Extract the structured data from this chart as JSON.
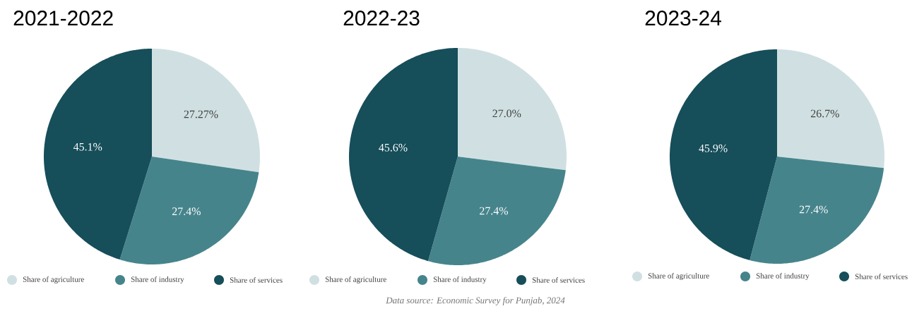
{
  "chart_data": [
    {
      "type": "pie",
      "title": "2021-2022",
      "categories": [
        "Share of agriculture",
        "Share of industry",
        "Share of services"
      ],
      "values": [
        27.27,
        27.4,
        45.1
      ],
      "value_labels": [
        "27.27%",
        "27.4%",
        "45.1%"
      ],
      "colors": [
        "#d0e0e2",
        "#46848c",
        "#164e5a"
      ],
      "legend": "bottom"
    },
    {
      "type": "pie",
      "title": "2022-23",
      "categories": [
        "Share of agriculture",
        "Share of industry",
        "Share of services"
      ],
      "values": [
        27.0,
        27.4,
        45.6
      ],
      "value_labels": [
        "27.0%",
        "27.4%",
        "45.6%"
      ],
      "colors": [
        "#d0e0e2",
        "#46848c",
        "#164e5a"
      ],
      "legend": "bottom",
      "annotations": [
        "Data source: Economic Survey for Punjab, 2024"
      ]
    },
    {
      "type": "pie",
      "title": "2023-24",
      "categories": [
        "Share of agriculture",
        "Share of industry",
        "Share of services"
      ],
      "values": [
        26.7,
        27.4,
        45.9
      ],
      "value_labels": [
        "26.7%",
        "27.4%",
        "45.9%"
      ],
      "colors": [
        "#d0e0e2",
        "#46848c",
        "#164e5a"
      ],
      "legend": "bottom"
    }
  ]
}
